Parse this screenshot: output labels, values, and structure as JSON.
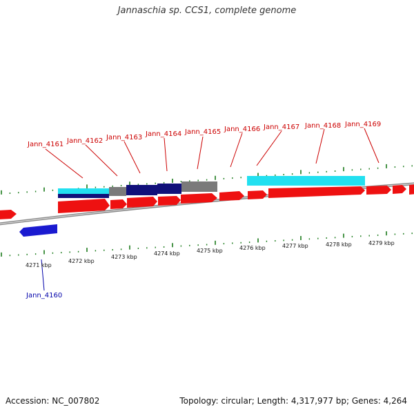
{
  "title": "Jannaschia sp. CCS1, complete genome",
  "footer": {
    "accession": "Accession: NC_007802",
    "topology": "Topology: circular; Length: 4,317,977 bp; Genes: 4,264"
  },
  "colors": {
    "gene_label_red": "#cc0000",
    "gene_label_blue": "#0000aa",
    "forward_gene": "#ee1111",
    "reverse_gene": "#1a1ad0",
    "tick_green": "#1a7a1a",
    "band_cyan": "#22e0f0",
    "band_navy": "#10107a",
    "band_gray": "#7a7a7a",
    "backbone": "#8a8a8a"
  },
  "scale_labels": [
    "4271 kbp",
    "4272 kbp",
    "4273 kbp",
    "4274 kbp",
    "4275 kbp",
    "4276 kbp",
    "4277 kbp",
    "4278 kbp",
    "4279 kbp"
  ],
  "gene_labels": [
    "Jann_4160",
    "Jann_4161",
    "Jann_4162",
    "Jann_4163",
    "Jann_4164",
    "Jann_4165",
    "Jann_4166",
    "Jann_4167",
    "Jann_4168",
    "Jann_4169"
  ]
}
